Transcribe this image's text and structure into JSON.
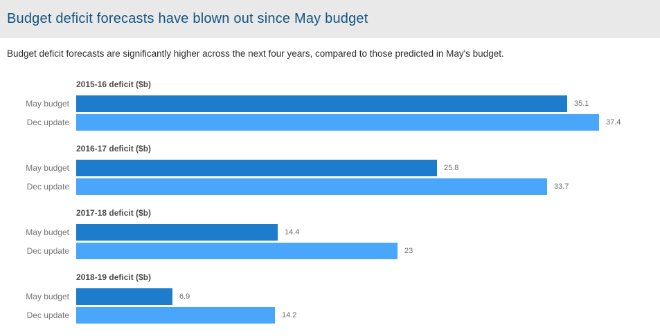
{
  "header": {
    "title": "Budget deficit forecasts have blown out since May budget"
  },
  "subtitle": "Budget deficit forecasts are significantly higher across the next four years, compared to those predicted in May's budget.",
  "colors": {
    "header_background": "#e9e9e9",
    "title_text": "#15537f",
    "may_budget_bar": "#1d7ccb",
    "dec_update_bar": "#4aa6fb",
    "label_text": "#757575",
    "value_text": "#6e6e6e"
  },
  "chart_data": {
    "type": "bar",
    "orientation": "horizontal",
    "legend_position": "none",
    "grid": false,
    "xlim": [
      0,
      37.4
    ],
    "row_labels": [
      "May budget",
      "Dec update"
    ],
    "series_names": [
      "May budget",
      "Dec update"
    ],
    "groups": [
      {
        "title": "2015-16 deficit ($b)",
        "values": [
          35.1,
          37.4
        ],
        "value_labels": [
          "35.1",
          "37.4"
        ]
      },
      {
        "title": "2016-17 deficit ($b)",
        "values": [
          25.8,
          33.7
        ],
        "value_labels": [
          "25.8",
          "33.7"
        ]
      },
      {
        "title": "2017-18 deficit ($b)",
        "values": [
          14.4,
          23
        ],
        "value_labels": [
          "14.4",
          "23"
        ]
      },
      {
        "title": "2018-19 deficit ($b)",
        "values": [
          6.9,
          14.2
        ],
        "value_labels": [
          "6.9",
          "14.2"
        ]
      }
    ]
  }
}
